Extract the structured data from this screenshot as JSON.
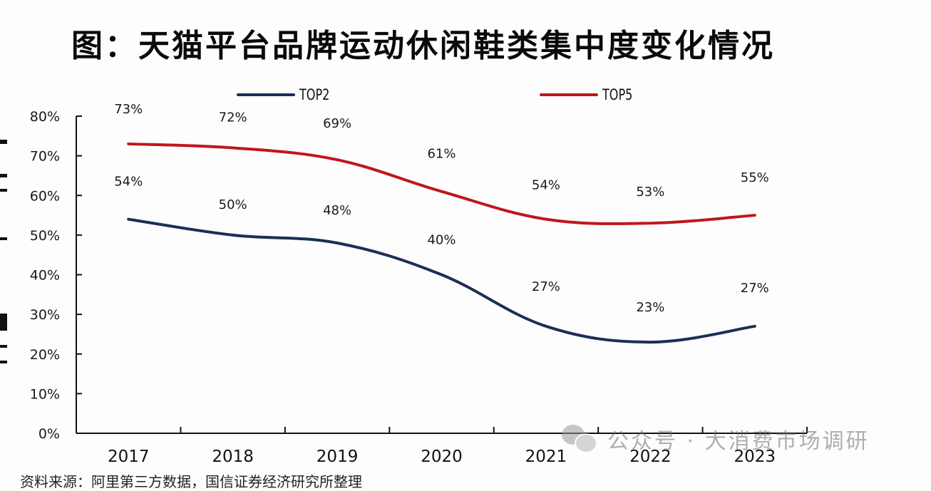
{
  "title": "图：天猫平台品牌运动休闲鞋类集中度变化情况",
  "source_note": "资料来源：阿里第三方数据，国信证券经济研究所整理",
  "watermark": {
    "icon": "wechat-icon",
    "text": "公众号 · 大消费市场调研"
  },
  "colors": {
    "top2": "#1b2f55",
    "top5": "#c0161c",
    "axis": "#111111"
  },
  "chart_data": {
    "type": "line",
    "title": "图：天猫平台品牌运动休闲鞋类集中度变化情况",
    "xlabel": "",
    "ylabel": "",
    "x": [
      "2017",
      "2018",
      "2019",
      "2020",
      "2021",
      "2022",
      "2023"
    ],
    "series": [
      {
        "name": "TOP2",
        "values": [
          54,
          50,
          48,
          40,
          27,
          23,
          27
        ],
        "labels": [
          "54%",
          "50%",
          "48%",
          "40%",
          "27%",
          "23%",
          "27%"
        ]
      },
      {
        "name": "TOP5",
        "values": [
          73,
          72,
          69,
          61,
          54,
          53,
          55
        ],
        "labels": [
          "73%",
          "72%",
          "69%",
          "61%",
          "54%",
          "53%",
          "55%"
        ]
      }
    ],
    "ylim": [
      0,
      80
    ],
    "yticks": [
      "0%",
      "10%",
      "20%",
      "30%",
      "40%",
      "50%",
      "60%",
      "70%",
      "80%"
    ],
    "grid": false,
    "smooth": true,
    "legend": "top"
  }
}
